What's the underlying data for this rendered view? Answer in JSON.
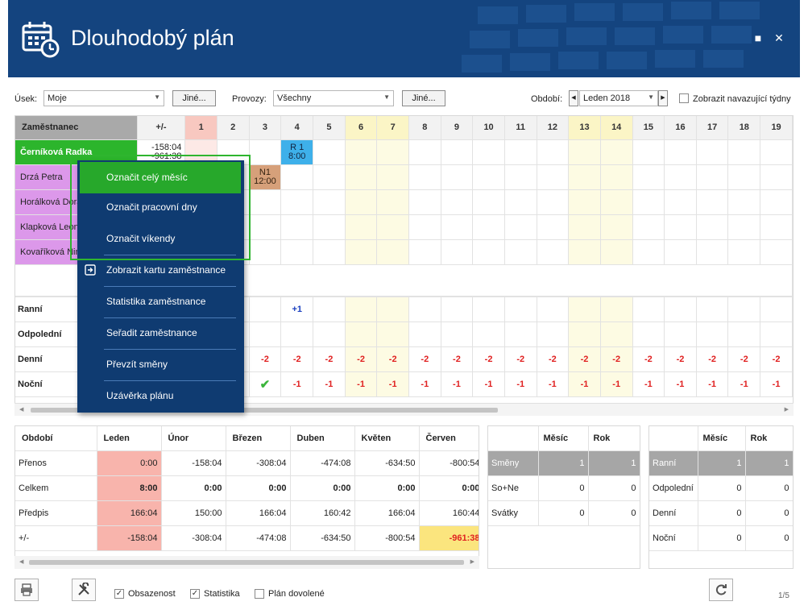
{
  "window": {
    "title": "Dlouhodobý plán",
    "minimize_icon": "maximize-icon",
    "close_icon": "close-icon",
    "maximize_glyph": "■",
    "close_glyph": "✕"
  },
  "toolbar": {
    "usek_label": "Úsek:",
    "usek_value": "Moje",
    "usek_other": "Jiné...",
    "provozy_label": "Provozy:",
    "provozy_value": "Všechny",
    "provozy_other": "Jiné...",
    "obdobi_label": "Období:",
    "obdobi_value": "Leden 2018",
    "prev_glyph": "◀",
    "next_glyph": "▶",
    "show_weeks_label": "Zobrazit navazující týdny",
    "dropdown_glyph": "▼"
  },
  "grid": {
    "header_employee": "Zaměstnanec",
    "header_pm": "+/-",
    "days": [
      "1",
      "2",
      "3",
      "4",
      "5",
      "6",
      "7",
      "8",
      "9",
      "10",
      "11",
      "12",
      "13",
      "14",
      "15",
      "16",
      "17",
      "18",
      "19"
    ],
    "employees": [
      {
        "name": "Černíková Radka",
        "pm1": "-158:04",
        "pm2": "-961:38"
      },
      {
        "name": "Drzá Petra",
        "pm1": "",
        "pm2": ""
      },
      {
        "name": "Horálková Dora",
        "pm1": "",
        "pm2": ""
      },
      {
        "name": "Klapková Leona",
        "pm1": "",
        "pm2": ""
      },
      {
        "name": "Kovaříková Nina",
        "pm1": "",
        "pm2": ""
      }
    ],
    "shifts": {
      "r1_code": "R 1",
      "r1_time": "8:00",
      "n1_code": "N1",
      "n1_time": "12:00"
    },
    "summary_rows": [
      {
        "label": "Ranní"
      },
      {
        "label": "Odpolední"
      },
      {
        "label": "Denní"
      },
      {
        "label": "Noční"
      }
    ],
    "ranni_d4": "+1",
    "denni_values": [
      "-2",
      "-2",
      "-2",
      "-2",
      "-2",
      "-2",
      "-2",
      "-2",
      "-2",
      "-2",
      "-2",
      "-2",
      "-2",
      "-2",
      "-2",
      "-2",
      "-2"
    ],
    "nocni_values": [
      "-1",
      "-1",
      "-1",
      "-1",
      "-1",
      "-1",
      "-1",
      "-1",
      "-1",
      "-1",
      "-1",
      "-1",
      "-1",
      "-1",
      "-1",
      "-1"
    ],
    "nocni_d3_icon": "check-icon"
  },
  "context_menu": {
    "items": [
      {
        "label": "Označit celý měsíc"
      },
      {
        "label": "Označit pracovní dny"
      },
      {
        "label": "Označit víkendy"
      },
      {
        "label": "Zobrazit kartu zaměstnance"
      },
      {
        "label": "Statistika zaměstnance"
      },
      {
        "label": "Seřadit zaměstnance"
      },
      {
        "label": "Převzít směny"
      },
      {
        "label": "Uzávěrka plánu"
      }
    ]
  },
  "summary": {
    "headers": [
      "Období",
      "Leden",
      "Únor",
      "Březen",
      "Duben",
      "Květen",
      "Červen"
    ],
    "rows": [
      {
        "label": "Přenos",
        "values": [
          "0:00",
          "-158:04",
          "-308:04",
          "-474:08",
          "-634:50",
          "-800:54"
        ]
      },
      {
        "label": "Celkem",
        "values": [
          "8:00",
          "0:00",
          "0:00",
          "0:00",
          "0:00",
          "0:00"
        ]
      },
      {
        "label": "Předpis",
        "values": [
          "166:04",
          "150:00",
          "166:04",
          "160:42",
          "166:04",
          "160:44"
        ]
      },
      {
        "label": "+/-",
        "values": [
          "-158:04",
          "-308:04",
          "-474:08",
          "-634:50",
          "-800:54",
          "-961:38"
        ]
      }
    ]
  },
  "stats_shifts": {
    "headers": [
      "",
      "Měsíc",
      "Rok"
    ],
    "rows": [
      {
        "label": "Směny",
        "m": "1",
        "r": "1"
      },
      {
        "label": "So+Ne",
        "m": "0",
        "r": "0"
      },
      {
        "label": "Svátky",
        "m": "0",
        "r": "0"
      }
    ]
  },
  "stats_types": {
    "headers": [
      "",
      "Měsíc",
      "Rok"
    ],
    "rows": [
      {
        "label": "Ranní",
        "m": "1",
        "r": "1"
      },
      {
        "label": "Odpolední",
        "m": "0",
        "r": "0"
      },
      {
        "label": "Denní",
        "m": "0",
        "r": "0"
      },
      {
        "label": "Noční",
        "m": "0",
        "r": "0"
      }
    ]
  },
  "footer": {
    "print_icon": "print-icon",
    "settings_icon": "tools-icon",
    "refresh_icon": "refresh-icon",
    "obsazenost_label": "Obsazenost",
    "statistika_label": "Statistika",
    "plan_dovolene_label": "Plán dovolené",
    "page_indicator": "1/5",
    "check_glyph": "✓"
  },
  "colors": {
    "header_bg": "#14447f",
    "menu_bg": "#0f3b71",
    "menu_active": "#27a82b",
    "employee_green": "#2cb52c",
    "employee_violet": "#dc98ea",
    "negative_red": "#e02020",
    "weekend_yellow": "#fdfbe3"
  }
}
